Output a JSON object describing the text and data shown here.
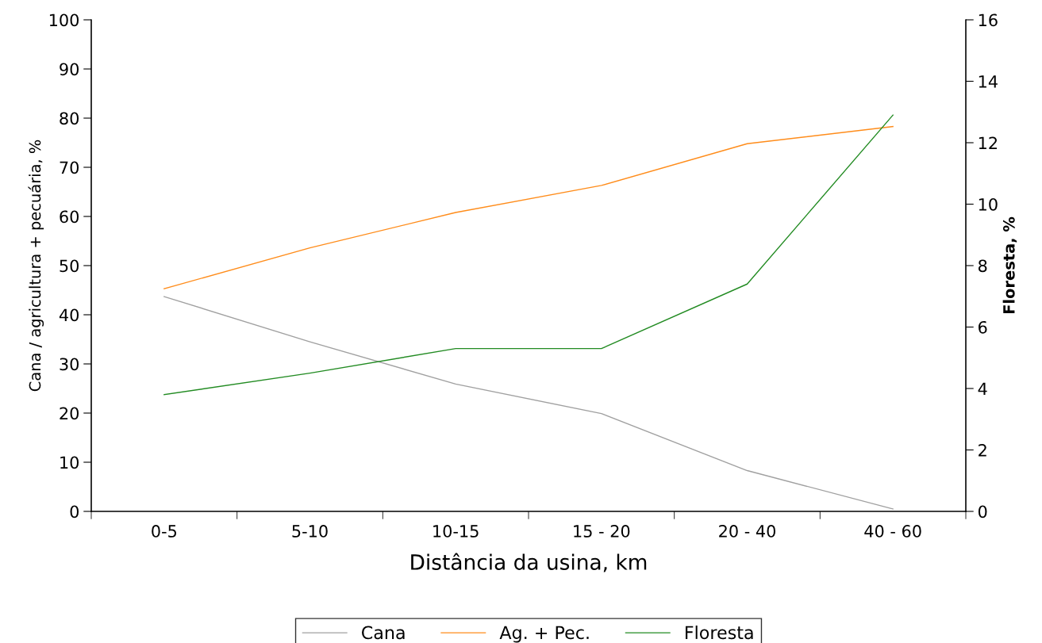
{
  "chart_data": {
    "type": "line",
    "xlabel": "Distância da usina, km",
    "ylabel": "Cana / agricultura + pecuária, %",
    "y2label": "Floresta, %",
    "categories": [
      "0-5",
      "5-10",
      "10-15",
      "15 - 20",
      "20 - 40",
      "40 - 60"
    ],
    "series": [
      {
        "name": "Cana",
        "color": "#a0a0a0",
        "values": [
          43.7,
          34.5,
          25.9,
          19.9,
          8.3,
          0.5
        ]
      },
      {
        "name": "Ag. + Pec.",
        "color": "#ff8c1a",
        "values": [
          45.3,
          53.6,
          60.8,
          66.3,
          74.8,
          78.3
        ]
      },
      {
        "name": "Floresta",
        "color": "#228b22",
        "axis": "y2",
        "values": [
          3.8,
          4.5,
          5.3,
          5.3,
          7.4,
          12.9
        ]
      }
    ],
    "ylim": [
      0,
      100
    ],
    "yticks": [
      0,
      10,
      20,
      30,
      40,
      50,
      60,
      70,
      80,
      90,
      100
    ],
    "y2lim": [
      0,
      16
    ],
    "y2ticks": [
      0,
      2,
      4,
      6,
      8,
      10,
      12,
      14,
      16
    ],
    "grid": false,
    "legend": "bottom",
    "marker": "none",
    "line_style": "solid"
  }
}
